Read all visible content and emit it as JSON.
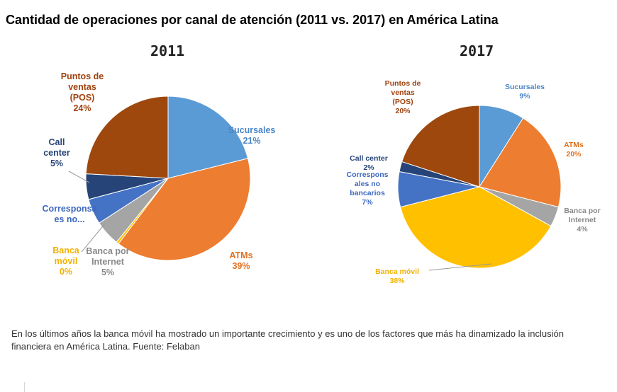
{
  "page": {
    "title": "Cantidad de operaciones por canal de atención (2011 vs. 2017) en América Latina",
    "caption": "En los últimos años la banca móvil ha mostrado un importante crecimiento y es uno de los factores que más ha dinamizado la inclusión financiera en América Latina. Fuente: Felaban"
  },
  "chart_data": [
    {
      "type": "pie",
      "title": "2011",
      "slices": [
        {
          "label": "Sucursales",
          "value": 21,
          "pct": "21%",
          "color": "#5B9BD5",
          "text_color": "#4A86C7"
        },
        {
          "label": "ATMs",
          "value": 39,
          "pct": "39%",
          "color": "#ED7D31",
          "text_color": "#E0701F"
        },
        {
          "label": "Banca móvil",
          "value": 0.5,
          "pct": "0%",
          "color": "#FFC000",
          "text_color": "#F2B100"
        },
        {
          "label": "Banca por Internet",
          "value": 5,
          "pct": "5%",
          "color": "#A5A5A5",
          "text_color": "#8A8A8A"
        },
        {
          "label": "Corresponsales no...",
          "value": 5,
          "pct": "",
          "color": "#4472C4",
          "text_color": "#3F68C0"
        },
        {
          "label": "Call center",
          "value": 5,
          "pct": "5%",
          "color": "#264478",
          "text_color": "#264478"
        },
        {
          "label": "Puntos de ventas (POS)",
          "value": 24,
          "pct": "24%",
          "color": "#9E480E",
          "text_color": "#A0410D"
        }
      ],
      "labels": {
        "sucursales": [
          "Sucursales",
          "21%"
        ],
        "atms": [
          "ATMs",
          "39%"
        ],
        "banca_movil": [
          "Banca",
          "móvil",
          "0%"
        ],
        "banca_internet": [
          "Banca por",
          "Internet",
          "5%"
        ],
        "corresponsales": [
          "Corresponsa",
          "es no..."
        ],
        "call_center": [
          "Call",
          "center",
          "5%"
        ],
        "pos": [
          "Puntos de",
          "ventas",
          "(POS)",
          "24%"
        ]
      }
    },
    {
      "type": "pie",
      "title": "2017",
      "slices": [
        {
          "label": "Sucursales",
          "value": 9,
          "pct": "9%",
          "color": "#5B9BD5",
          "text_color": "#4A86C7"
        },
        {
          "label": "ATMs",
          "value": 20,
          "pct": "20%",
          "color": "#ED7D31",
          "text_color": "#E0701F"
        },
        {
          "label": "Banca por Internet",
          "value": 4,
          "pct": "4%",
          "color": "#A5A5A5",
          "text_color": "#8A8A8A"
        },
        {
          "label": "Banca móvil",
          "value": 38,
          "pct": "38%",
          "color": "#FFC000",
          "text_color": "#F2B100"
        },
        {
          "label": "Corresponsales no bancarios",
          "value": 7,
          "pct": "7%",
          "color": "#4472C4",
          "text_color": "#3F68C0"
        },
        {
          "label": "Call center",
          "value": 2,
          "pct": "2%",
          "color": "#264478",
          "text_color": "#264478"
        },
        {
          "label": "Puntos de ventas (POS)",
          "value": 20,
          "pct": "20%",
          "color": "#9E480E",
          "text_color": "#A0410D"
        }
      ],
      "labels": {
        "sucursales": [
          "Sucursales",
          "9%"
        ],
        "atms": [
          "ATMs",
          "20%"
        ],
        "banca_internet": [
          "Banca por",
          "Internet",
          "4%"
        ],
        "banca_movil": [
          "Banca móvil",
          "38%"
        ],
        "corresponsales": [
          "Correspons",
          "ales no",
          "bancarios",
          "7%"
        ],
        "call_center": [
          "Call center",
          "2%"
        ],
        "pos": [
          "Puntos de",
          "ventas",
          "(POS)",
          "20%"
        ]
      }
    }
  ]
}
